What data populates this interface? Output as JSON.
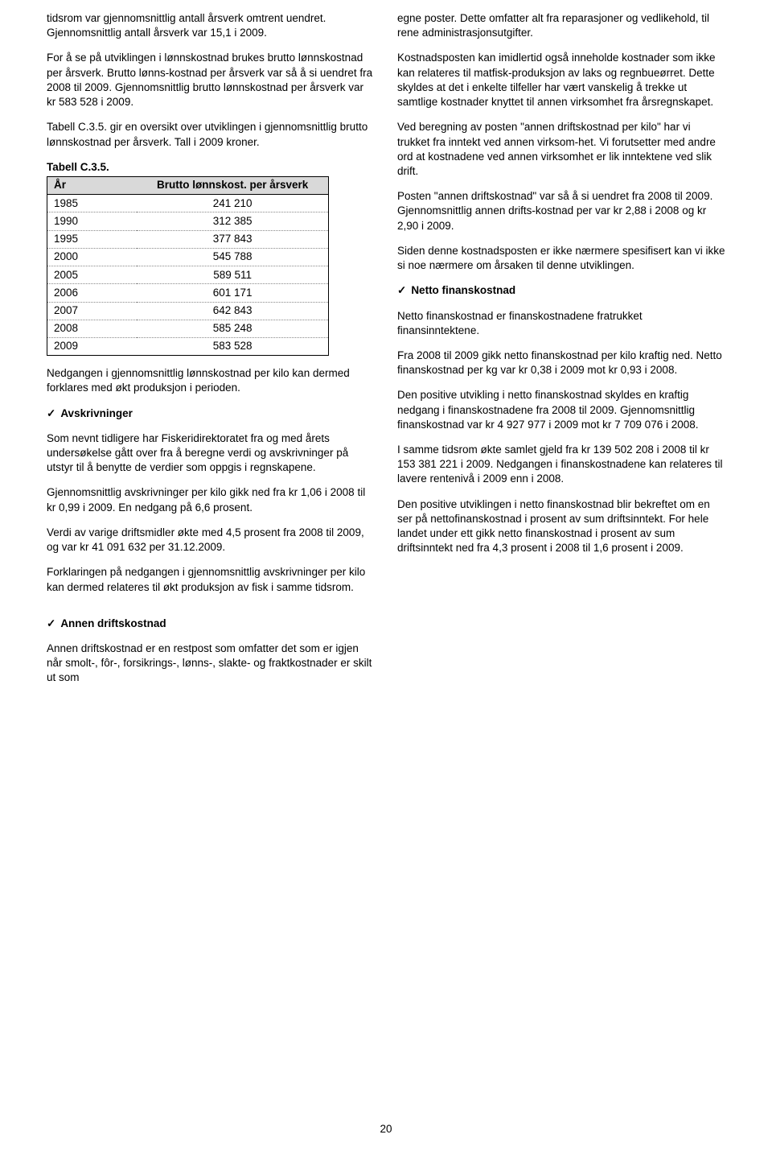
{
  "left": {
    "p1": "tidsrom var gjennomsnittlig antall årsverk omtrent uendret. Gjennomsnittlig antall årsverk var 15,1 i 2009.",
    "p2": "For å se på utviklingen i lønnskostnad brukes brutto lønnskostnad per årsverk. Brutto lønns-kostnad per årsverk var så å si uendret fra 2008 til 2009. Gjennomsnittlig brutto lønnskostnad per årsverk var kr 583 528 i 2009.",
    "p3": "Tabell C.3.5. gir en oversikt over utviklingen i gjennomsnittlig brutto lønnskostnad per årsverk. Tall i 2009 kroner.",
    "tableCaption": "Tabell C.3.5.",
    "th1": "År",
    "th2": "Brutto lønnskost. per årsverk",
    "rows": [
      {
        "y": "1985",
        "v": "241 210"
      },
      {
        "y": "1990",
        "v": "312 385"
      },
      {
        "y": "1995",
        "v": "377 843"
      },
      {
        "y": "2000",
        "v": "545 788"
      },
      {
        "y": "2005",
        "v": "589 511"
      },
      {
        "y": "2006",
        "v": "601 171"
      },
      {
        "y": "2007",
        "v": "642 843"
      },
      {
        "y": "2008",
        "v": "585 248"
      },
      {
        "y": "2009",
        "v": "583 528"
      }
    ],
    "p4": "Nedgangen i gjennomsnittlig lønnskostnad per kilo kan dermed forklares med økt produksjon i perioden.",
    "sec1": "Avskrivninger",
    "p5": "Som nevnt tidligere har Fiskeridirektoratet fra og med årets undersøkelse gått over fra å beregne verdi og avskrivninger på utstyr til å benytte de verdier som oppgis i regnskapene.",
    "p6": "Gjennomsnittlig avskrivninger per kilo gikk ned fra kr 1,06 i 2008 til kr 0,99 i 2009. En nedgang på 6,6 prosent.",
    "p7": "Verdi av varige driftsmidler økte med 4,5 prosent fra 2008 til 2009, og var kr 41 091 632 per 31.12.2009.",
    "p8": "Forklaringen på nedgangen i gjennomsnittlig avskrivninger per kilo kan dermed relateres til økt produksjon av fisk i samme tidsrom."
  },
  "right": {
    "p1": "egne poster. Dette omfatter alt fra reparasjoner og vedlikehold, til rene administrasjonsutgifter.",
    "p2": "Kostnadsposten kan imidlertid også inneholde kostnader som ikke kan relateres til matfisk-produksjon av laks og regnbueørret. Dette skyldes at det i enkelte tilfeller har vært vanskelig å trekke ut samtlige kostnader knyttet til annen virksomhet fra årsregnskapet.",
    "p3": "Ved beregning av posten \"annen driftskostnad per kilo\" har vi trukket fra inntekt ved annen virksom-het. Vi forutsetter med andre ord at kostnadene ved annen virksomhet er lik inntektene ved slik drift.",
    "p4": "Posten \"annen driftskostnad\" var så å si uendret fra 2008 til 2009. Gjennomsnittlig annen drifts-kostnad per var kr 2,88 i 2008 og kr 2,90 i 2009.",
    "p5": "Siden denne kostnadsposten er ikke nærmere spesifisert kan vi ikke si noe nærmere om årsaken til denne utviklingen.",
    "sec1": "Netto finanskostnad",
    "p6": "Netto finanskostnad er finanskostnadene fratrukket finansinntektene.",
    "p7": "Fra 2008 til 2009 gikk netto finanskostnad per kilo kraftig ned. Netto finanskostnad per kg var kr 0,38 i 2009 mot kr 0,93 i 2008.",
    "p8": "Den positive utvikling i netto finanskostnad skyldes en kraftig nedgang i finanskostnadene fra 2008 til 2009. Gjennomsnittlig finanskostnad var kr 4 927 977 i 2009 mot kr 7 709 076 i 2008.",
    "p9": "I samme tidsrom økte samlet gjeld fra kr 139 502 208 i 2008 til kr 153 381 221 i 2009. Nedgangen i finanskostnadene kan relateres til lavere rentenivå i 2009 enn i 2008.",
    "p10": "Den positive utviklingen i netto finanskostnad blir bekreftet om en ser på nettofinanskostnad i prosent av sum driftsinntekt. For hele landet under ett gikk netto finanskostnad i prosent av sum driftsinntekt ned fra 4,3 prosent i 2008 til 1,6 prosent i 2009."
  },
  "bottom": {
    "sec": "Annen driftskostnad",
    "p1": "Annen driftskostnad er en restpost som omfatter det som er igjen når smolt-, fôr-, forsikrings-, lønns-, slakte- og fraktkostnader er skilt ut som"
  },
  "pageNum": "20",
  "checkmark": "✓"
}
